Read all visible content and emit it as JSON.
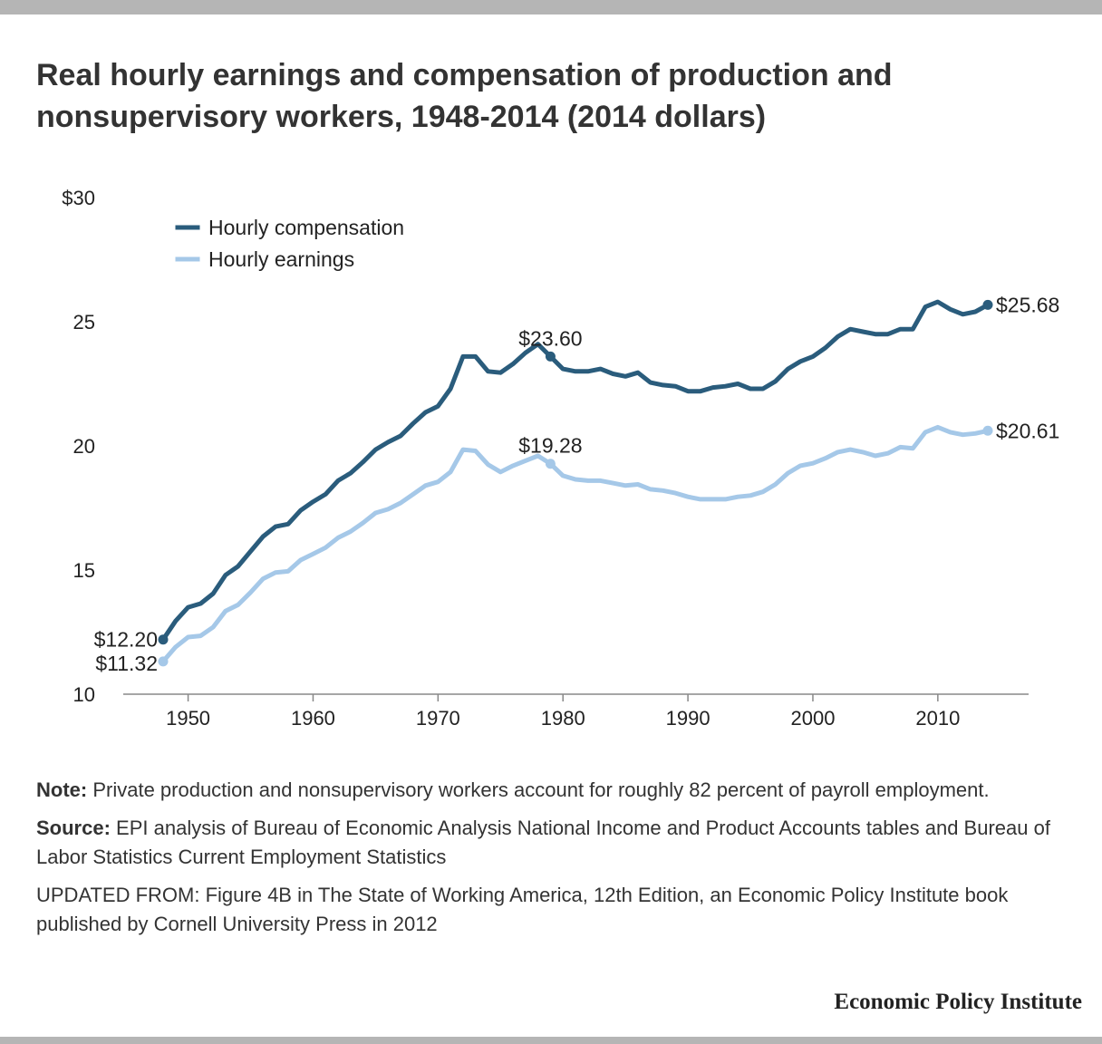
{
  "title": "Real hourly earnings and compensation of production and nonsupervisory workers, 1948-2014 (2014 dollars)",
  "notes": {
    "note_label": "Note:",
    "note_text": " Private production and nonsupervisory workers account for roughly 82 percent of payroll employment.",
    "source_label": "Source:",
    "source_text": " EPI analysis of Bureau of Economic Analysis National Income and Product Accounts tables and Bureau of Labor Statistics Current Employment Statistics",
    "updated_text": "UPDATED FROM: Figure 4B in The State of Working America, 12th Edition, an Economic Policy Institute book published by Cornell University Press in 2012"
  },
  "brand": "Economic Policy Institute",
  "colors": {
    "compensation": "#2a5c7c",
    "earnings": "#a5c8e8",
    "axis": "#888888"
  },
  "chart_data": {
    "type": "line",
    "title": "Real hourly earnings and compensation of production and nonsupervisory workers, 1948-2014 (2014 dollars)",
    "xlabel": "",
    "ylabel": "",
    "xlim": [
      1946,
      2018
    ],
    "ylim": [
      10,
      30
    ],
    "x_ticks": [
      1950,
      1960,
      1970,
      1980,
      1990,
      2000,
      2010
    ],
    "y_ticks": [
      {
        "value": 30,
        "label": "$30"
      },
      {
        "value": 25,
        "label": "25"
      },
      {
        "value": 20,
        "label": "20"
      },
      {
        "value": 15,
        "label": "15"
      },
      {
        "value": 10,
        "label": "10"
      }
    ],
    "grid": false,
    "legend": "top-left",
    "x": [
      1948,
      1949,
      1950,
      1951,
      1952,
      1953,
      1954,
      1955,
      1956,
      1957,
      1958,
      1959,
      1960,
      1961,
      1962,
      1963,
      1964,
      1965,
      1966,
      1967,
      1968,
      1969,
      1970,
      1971,
      1972,
      1973,
      1974,
      1975,
      1976,
      1977,
      1978,
      1979,
      1980,
      1981,
      1982,
      1983,
      1984,
      1985,
      1986,
      1987,
      1988,
      1989,
      1990,
      1991,
      1992,
      1993,
      1994,
      1995,
      1996,
      1997,
      1998,
      1999,
      2000,
      2001,
      2002,
      2003,
      2004,
      2005,
      2006,
      2007,
      2008,
      2009,
      2010,
      2011,
      2012,
      2013,
      2014
    ],
    "series": [
      {
        "name": "Hourly compensation",
        "values": [
          12.2,
          12.95,
          13.5,
          13.65,
          14.05,
          14.8,
          15.15,
          15.75,
          16.35,
          16.75,
          16.85,
          17.4,
          17.75,
          18.05,
          18.6,
          18.9,
          19.35,
          19.85,
          20.15,
          20.4,
          20.9,
          21.35,
          21.6,
          22.3,
          23.6,
          23.6,
          23.0,
          22.95,
          23.3,
          23.75,
          24.1,
          23.6,
          23.1,
          23.0,
          23.0,
          23.1,
          22.9,
          22.8,
          22.95,
          22.55,
          22.45,
          22.4,
          22.2,
          22.2,
          22.35,
          22.4,
          22.5,
          22.3,
          22.3,
          22.6,
          23.1,
          23.4,
          23.6,
          23.95,
          24.4,
          24.7,
          24.6,
          24.5,
          24.5,
          24.7,
          24.7,
          25.6,
          25.8,
          25.5,
          25.3,
          25.4,
          25.68
        ]
      },
      {
        "name": "Hourly earnings",
        "values": [
          11.32,
          11.9,
          12.3,
          12.35,
          12.7,
          13.35,
          13.6,
          14.1,
          14.65,
          14.9,
          14.95,
          15.4,
          15.65,
          15.9,
          16.3,
          16.55,
          16.9,
          17.3,
          17.45,
          17.7,
          18.05,
          18.4,
          18.55,
          18.95,
          19.85,
          19.8,
          19.25,
          18.95,
          19.2,
          19.4,
          19.6,
          19.28,
          18.8,
          18.65,
          18.6,
          18.6,
          18.5,
          18.4,
          18.45,
          18.25,
          18.2,
          18.1,
          17.95,
          17.85,
          17.85,
          17.85,
          17.95,
          18.0,
          18.15,
          18.45,
          18.9,
          19.2,
          19.3,
          19.5,
          19.75,
          19.85,
          19.75,
          19.6,
          19.7,
          19.95,
          19.9,
          20.55,
          20.75,
          20.55,
          20.45,
          20.5,
          20.61
        ]
      }
    ],
    "point_labels": [
      {
        "series": 0,
        "x": 1948,
        "text": "$12.20",
        "anchor": "left"
      },
      {
        "series": 0,
        "x": 1979,
        "text": "$23.60",
        "anchor": "above"
      },
      {
        "series": 0,
        "x": 2014,
        "text": "$25.68",
        "anchor": "right"
      },
      {
        "series": 1,
        "x": 1948,
        "text": "$11.32",
        "anchor": "left"
      },
      {
        "series": 1,
        "x": 1979,
        "text": "$19.28",
        "anchor": "above"
      },
      {
        "series": 1,
        "x": 2014,
        "text": "$20.61",
        "anchor": "right"
      }
    ]
  }
}
